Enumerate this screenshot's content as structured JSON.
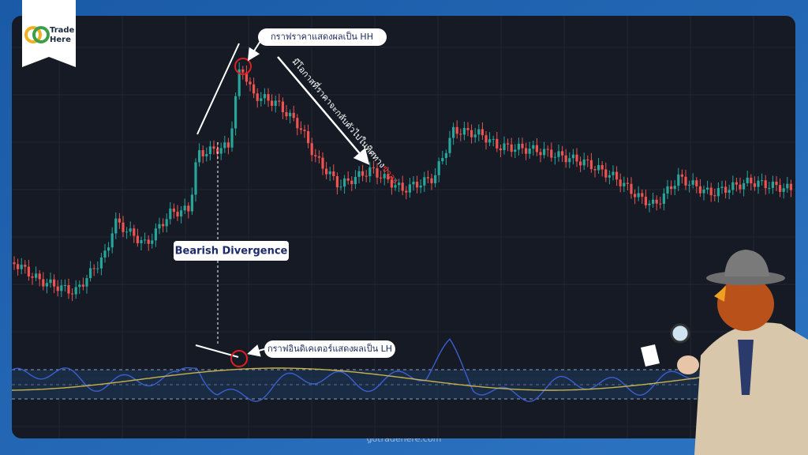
{
  "logo": {
    "line1": "Trade",
    "line2": "Here"
  },
  "annotations": {
    "price": "กราฟราคาแสดงผลเป็น HH",
    "reversal": "มีโอกาสที่ราคาจะกลับตัวไปในทิศทาง",
    "reversal_highlight": "ขาลง",
    "divergence": "Bearish Divergence",
    "indicator": "กราฟอินดิเคเตอร์แสดงผลเป็น LH"
  },
  "watermark": "gotradehere.com"
}
